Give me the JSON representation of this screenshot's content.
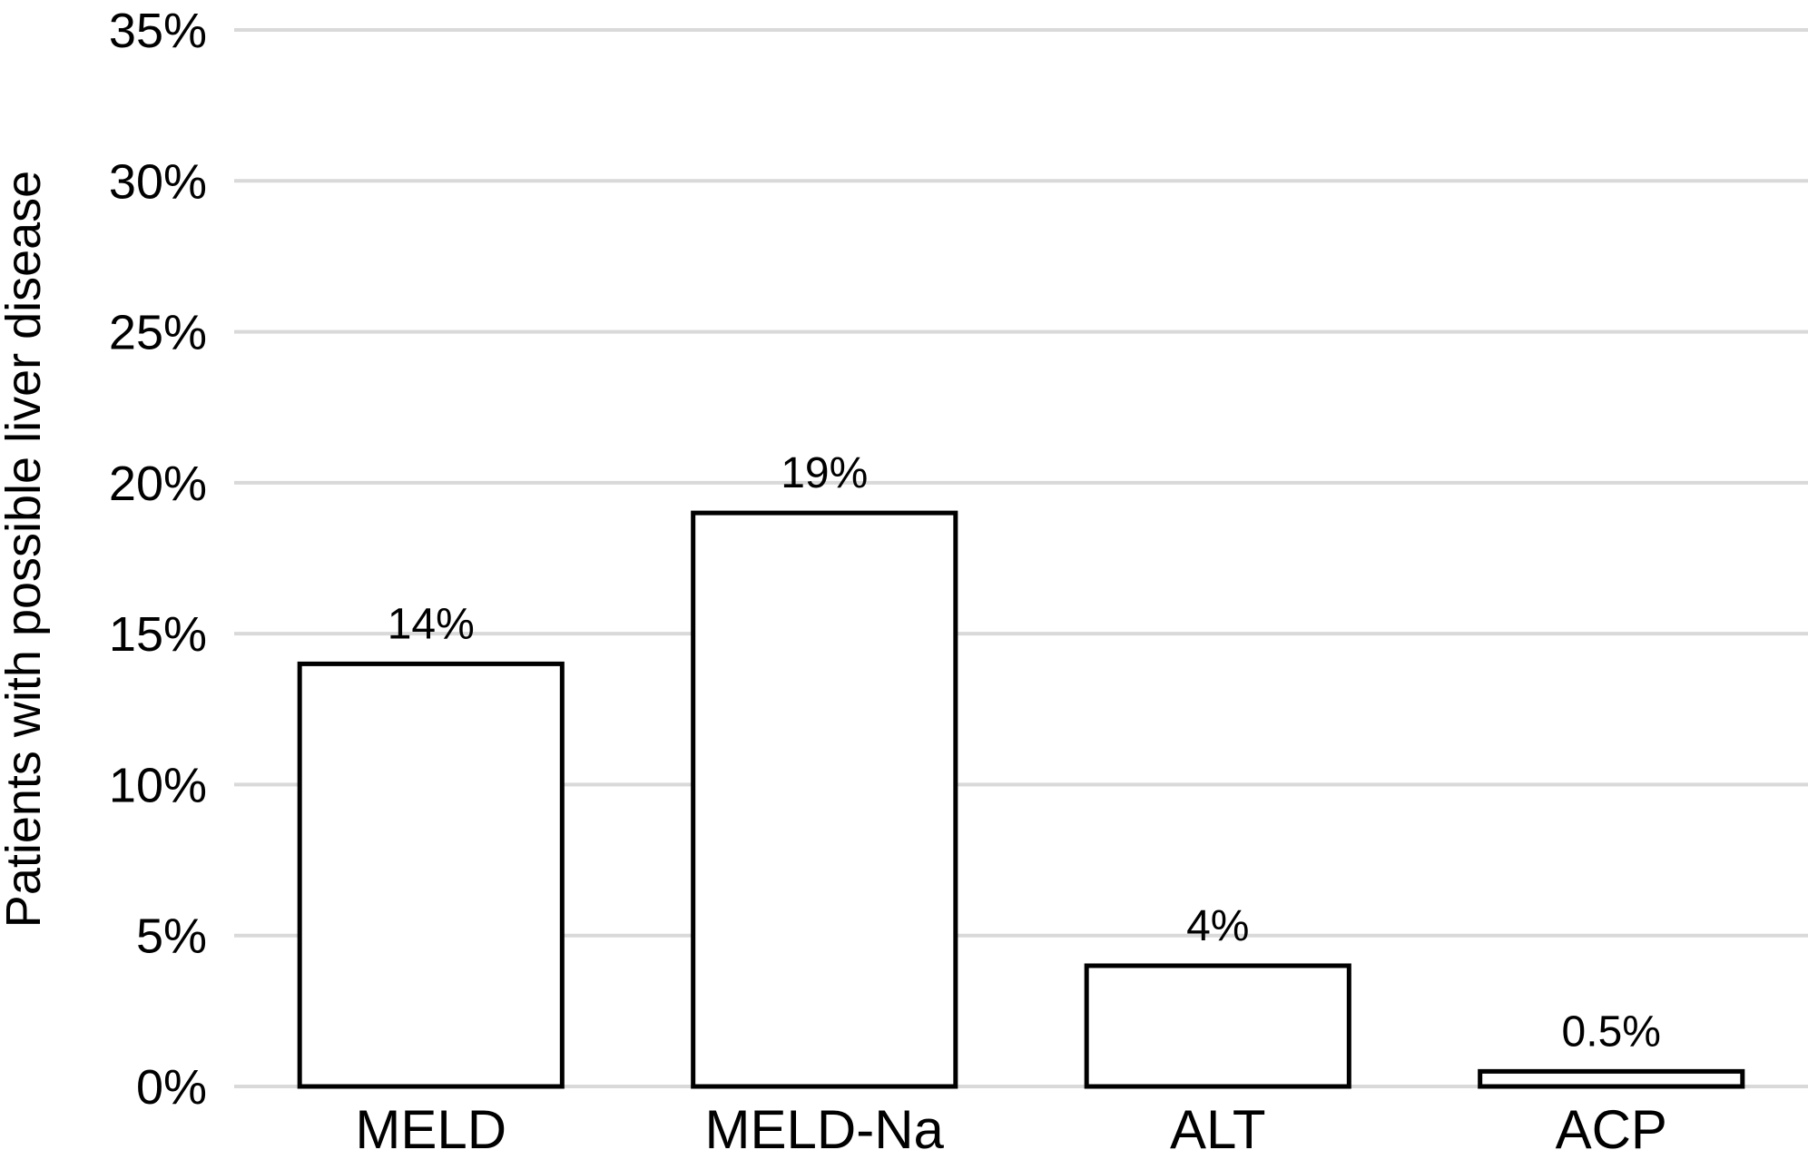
{
  "chart_data": {
    "type": "bar",
    "categories": [
      "MELD",
      "MELD-Na",
      "ALT",
      "ACP"
    ],
    "values": [
      14,
      19,
      4,
      0.5
    ],
    "value_labels": [
      "14%",
      "19%",
      "4%",
      "0.5%"
    ],
    "title": "",
    "xlabel": "",
    "ylabel": "Patients with possible liver disease",
    "ylim": [
      0,
      35
    ],
    "yticks": [
      0,
      5,
      10,
      15,
      20,
      25,
      30,
      35
    ],
    "ytick_labels": [
      "0%",
      "5%",
      "10%",
      "15%",
      "20%",
      "25%",
      "30%",
      "35%"
    ],
    "grid": "horizontal",
    "legend": "none",
    "bar_fill": "#ffffff",
    "bar_edge": "#000000",
    "grid_color": "#d9d9d9"
  }
}
